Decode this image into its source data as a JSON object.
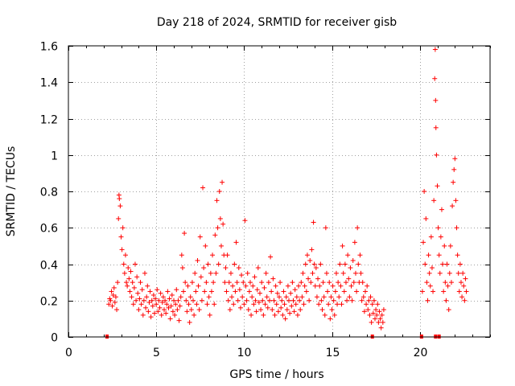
{
  "chart_data": {
    "type": "scatter",
    "title": "Day 218 of 2024, SRMTID for receiver gisb",
    "xlabel": "GPS time / hours",
    "ylabel": "SRMTID / TECUs",
    "xlim": [
      0,
      24
    ],
    "ylim": [
      0,
      1.6
    ],
    "xticks": [
      0,
      5,
      10,
      15,
      20
    ],
    "yticks": [
      0,
      0.2,
      0.4,
      0.6,
      0.8,
      1,
      1.2,
      1.4,
      1.6
    ],
    "xtick_labels": [
      "0",
      "5",
      "10",
      "15",
      "20"
    ],
    "ytick_labels": [
      "0",
      "0.2",
      "0.4",
      "0.6",
      "0.8",
      "1",
      "1.2",
      "1.4",
      "1.6"
    ],
    "grid": true,
    "marker": "plus",
    "color": "#ff0000",
    "zero_markers_x": [
      2.2,
      17.3,
      20.1,
      20.9,
      21.1
    ],
    "points": [
      [
        2.3,
        0.18
      ],
      [
        2.35,
        0.21
      ],
      [
        2.4,
        0.2
      ],
      [
        2.45,
        0.25
      ],
      [
        2.5,
        0.17
      ],
      [
        2.55,
        0.23
      ],
      [
        2.6,
        0.27
      ],
      [
        2.65,
        0.19
      ],
      [
        2.7,
        0.22
      ],
      [
        2.75,
        0.15
      ],
      [
        2.8,
        0.3
      ],
      [
        2.85,
        0.65
      ],
      [
        2.88,
        0.78
      ],
      [
        2.9,
        0.76
      ],
      [
        2.95,
        0.72
      ],
      [
        3.0,
        0.55
      ],
      [
        3.05,
        0.48
      ],
      [
        3.1,
        0.6
      ],
      [
        3.15,
        0.4
      ],
      [
        3.2,
        0.35
      ],
      [
        3.25,
        0.45
      ],
      [
        3.3,
        0.3
      ],
      [
        3.35,
        0.28
      ],
      [
        3.4,
        0.38
      ],
      [
        3.45,
        0.32
      ],
      [
        3.5,
        0.25
      ],
      [
        3.55,
        0.36
      ],
      [
        3.6,
        0.22
      ],
      [
        3.65,
        0.3
      ],
      [
        3.7,
        0.18
      ],
      [
        3.75,
        0.27
      ],
      [
        3.8,
        0.4
      ],
      [
        3.85,
        0.2
      ],
      [
        3.9,
        0.33
      ],
      [
        3.95,
        0.24
      ],
      [
        4.0,
        0.15
      ],
      [
        4.05,
        0.21
      ],
      [
        4.1,
        0.3
      ],
      [
        4.15,
        0.18
      ],
      [
        4.2,
        0.26
      ],
      [
        4.25,
        0.12
      ],
      [
        4.3,
        0.2
      ],
      [
        4.35,
        0.35
      ],
      [
        4.4,
        0.16
      ],
      [
        4.45,
        0.22
      ],
      [
        4.5,
        0.28
      ],
      [
        4.55,
        0.14
      ],
      [
        4.6,
        0.19
      ],
      [
        4.65,
        0.25
      ],
      [
        4.7,
        0.11
      ],
      [
        4.75,
        0.2
      ],
      [
        4.8,
        0.17
      ],
      [
        4.85,
        0.23
      ],
      [
        4.9,
        0.13
      ],
      [
        4.95,
        0.21
      ],
      [
        5.0,
        0.18
      ],
      [
        5.05,
        0.26
      ],
      [
        5.1,
        0.14
      ],
      [
        5.15,
        0.2
      ],
      [
        5.2,
        0.16
      ],
      [
        5.25,
        0.24
      ],
      [
        5.3,
        0.12
      ],
      [
        5.35,
        0.19
      ],
      [
        5.4,
        0.22
      ],
      [
        5.45,
        0.15
      ],
      [
        5.5,
        0.2
      ],
      [
        5.55,
        0.13
      ],
      [
        5.6,
        0.18
      ],
      [
        5.65,
        0.25
      ],
      [
        5.7,
        0.16
      ],
      [
        5.75,
        0.21
      ],
      [
        5.8,
        0.1
      ],
      [
        5.85,
        0.17
      ],
      [
        5.9,
        0.23
      ],
      [
        5.95,
        0.14
      ],
      [
        6.0,
        0.2
      ],
      [
        6.05,
        0.12
      ],
      [
        6.1,
        0.18
      ],
      [
        6.15,
        0.26
      ],
      [
        6.2,
        0.15
      ],
      [
        6.25,
        0.2
      ],
      [
        6.3,
        0.09
      ],
      [
        6.35,
        0.17
      ],
      [
        6.4,
        0.22
      ],
      [
        6.45,
        0.45
      ],
      [
        6.5,
        0.38
      ],
      [
        6.55,
        0.25
      ],
      [
        6.6,
        0.57
      ],
      [
        6.65,
        0.3
      ],
      [
        6.7,
        0.2
      ],
      [
        6.75,
        0.14
      ],
      [
        6.8,
        0.28
      ],
      [
        6.85,
        0.18
      ],
      [
        6.9,
        0.08
      ],
      [
        6.95,
        0.22
      ],
      [
        7.0,
        0.15
      ],
      [
        7.05,
        0.3
      ],
      [
        7.1,
        0.2
      ],
      [
        7.15,
        0.12
      ],
      [
        7.2,
        0.35
      ],
      [
        7.25,
        0.25
      ],
      [
        7.3,
        0.18
      ],
      [
        7.35,
        0.42
      ],
      [
        7.4,
        0.28
      ],
      [
        7.45,
        0.15
      ],
      [
        7.5,
        0.55
      ],
      [
        7.55,
        0.33
      ],
      [
        7.6,
        0.2
      ],
      [
        7.65,
        0.82
      ],
      [
        7.7,
        0.38
      ],
      [
        7.75,
        0.25
      ],
      [
        7.8,
        0.5
      ],
      [
        7.85,
        0.3
      ],
      [
        7.9,
        0.18
      ],
      [
        7.95,
        0.4
      ],
      [
        8.0,
        0.22
      ],
      [
        8.05,
        0.12
      ],
      [
        8.1,
        0.35
      ],
      [
        8.15,
        0.25
      ],
      [
        8.2,
        0.45
      ],
      [
        8.25,
        0.3
      ],
      [
        8.3,
        0.18
      ],
      [
        8.35,
        0.56
      ],
      [
        8.4,
        0.35
      ],
      [
        8.45,
        0.75
      ],
      [
        8.5,
        0.6
      ],
      [
        8.55,
        0.4
      ],
      [
        8.6,
        0.8
      ],
      [
        8.65,
        0.65
      ],
      [
        8.7,
        0.5
      ],
      [
        8.75,
        0.85
      ],
      [
        8.8,
        0.62
      ],
      [
        8.85,
        0.45
      ],
      [
        8.9,
        0.3
      ],
      [
        8.95,
        0.38
      ],
      [
        9.0,
        0.25
      ],
      [
        9.05,
        0.45
      ],
      [
        9.1,
        0.2
      ],
      [
        9.15,
        0.3
      ],
      [
        9.2,
        0.15
      ],
      [
        9.25,
        0.35
      ],
      [
        9.3,
        0.22
      ],
      [
        9.35,
        0.28
      ],
      [
        9.4,
        0.18
      ],
      [
        9.45,
        0.4
      ],
      [
        9.5,
        0.25
      ],
      [
        9.55,
        0.52
      ],
      [
        9.6,
        0.3
      ],
      [
        9.65,
        0.2
      ],
      [
        9.7,
        0.38
      ],
      [
        9.75,
        0.26
      ],
      [
        9.8,
        0.16
      ],
      [
        9.85,
        0.34
      ],
      [
        9.9,
        0.22
      ],
      [
        9.95,
        0.3
      ],
      [
        10.0,
        0.18
      ],
      [
        10.05,
        0.64
      ],
      [
        10.1,
        0.28
      ],
      [
        10.15,
        0.2
      ],
      [
        10.2,
        0.35
      ],
      [
        10.25,
        0.15
      ],
      [
        10.3,
        0.25
      ],
      [
        10.35,
        0.3
      ],
      [
        10.4,
        0.12
      ],
      [
        10.45,
        0.22
      ],
      [
        10.5,
        0.28
      ],
      [
        10.55,
        0.18
      ],
      [
        10.6,
        0.33
      ],
      [
        10.65,
        0.2
      ],
      [
        10.7,
        0.14
      ],
      [
        10.75,
        0.26
      ],
      [
        10.8,
        0.38
      ],
      [
        10.85,
        0.19
      ],
      [
        10.9,
        0.24
      ],
      [
        10.95,
        0.15
      ],
      [
        11.0,
        0.3
      ],
      [
        11.05,
        0.2
      ],
      [
        11.1,
        0.12
      ],
      [
        11.15,
        0.27
      ],
      [
        11.2,
        0.18
      ],
      [
        11.25,
        0.35
      ],
      [
        11.3,
        0.22
      ],
      [
        11.35,
        0.16
      ],
      [
        11.4,
        0.3
      ],
      [
        11.45,
        0.2
      ],
      [
        11.5,
        0.44
      ],
      [
        11.55,
        0.25
      ],
      [
        11.6,
        0.15
      ],
      [
        11.65,
        0.32
      ],
      [
        11.7,
        0.2
      ],
      [
        11.75,
        0.12
      ],
      [
        11.8,
        0.28
      ],
      [
        11.85,
        0.18
      ],
      [
        11.9,
        0.24
      ],
      [
        11.95,
        0.14
      ],
      [
        12.0,
        0.22
      ],
      [
        12.05,
        0.3
      ],
      [
        12.1,
        0.16
      ],
      [
        12.15,
        0.2
      ],
      [
        12.2,
        0.12
      ],
      [
        12.25,
        0.25
      ],
      [
        12.3,
        0.18
      ],
      [
        12.35,
        0.1
      ],
      [
        12.4,
        0.22
      ],
      [
        12.45,
        0.15
      ],
      [
        12.5,
        0.28
      ],
      [
        12.55,
        0.2
      ],
      [
        12.6,
        0.13
      ],
      [
        12.65,
        0.24
      ],
      [
        12.7,
        0.17
      ],
      [
        12.75,
        0.3
      ],
      [
        12.8,
        0.2
      ],
      [
        12.85,
        0.14
      ],
      [
        12.9,
        0.26
      ],
      [
        12.95,
        0.18
      ],
      [
        13.0,
        0.22
      ],
      [
        13.05,
        0.12
      ],
      [
        13.1,
        0.28
      ],
      [
        13.15,
        0.2
      ],
      [
        13.2,
        0.15
      ],
      [
        13.25,
        0.3
      ],
      [
        13.3,
        0.22
      ],
      [
        13.35,
        0.35
      ],
      [
        13.4,
        0.18
      ],
      [
        13.45,
        0.28
      ],
      [
        13.5,
        0.4
      ],
      [
        13.55,
        0.25
      ],
      [
        13.6,
        0.45
      ],
      [
        13.65,
        0.32
      ],
      [
        13.7,
        0.2
      ],
      [
        13.75,
        0.42
      ],
      [
        13.8,
        0.3
      ],
      [
        13.85,
        0.48
      ],
      [
        13.9,
        0.35
      ],
      [
        13.95,
        0.63
      ],
      [
        14.0,
        0.4
      ],
      [
        14.05,
        0.28
      ],
      [
        14.1,
        0.38
      ],
      [
        14.15,
        0.22
      ],
      [
        14.2,
        0.32
      ],
      [
        14.25,
        0.18
      ],
      [
        14.3,
        0.28
      ],
      [
        14.35,
        0.4
      ],
      [
        14.4,
        0.2
      ],
      [
        14.45,
        0.15
      ],
      [
        14.5,
        0.3
      ],
      [
        14.55,
        0.22
      ],
      [
        14.6,
        0.12
      ],
      [
        14.65,
        0.6
      ],
      [
        14.7,
        0.35
      ],
      [
        14.75,
        0.25
      ],
      [
        14.8,
        0.18
      ],
      [
        14.85,
        0.3
      ],
      [
        14.9,
        0.1
      ],
      [
        14.95,
        0.22
      ],
      [
        15.0,
        0.15
      ],
      [
        15.05,
        0.28
      ],
      [
        15.1,
        0.2
      ],
      [
        15.15,
        0.12
      ],
      [
        15.2,
        0.25
      ],
      [
        15.25,
        0.35
      ],
      [
        15.3,
        0.18
      ],
      [
        15.35,
        0.3
      ],
      [
        15.4,
        0.22
      ],
      [
        15.45,
        0.4
      ],
      [
        15.5,
        0.28
      ],
      [
        15.55,
        0.18
      ],
      [
        15.6,
        0.5
      ],
      [
        15.65,
        0.35
      ],
      [
        15.7,
        0.25
      ],
      [
        15.75,
        0.4
      ],
      [
        15.8,
        0.3
      ],
      [
        15.85,
        0.2
      ],
      [
        15.9,
        0.45
      ],
      [
        15.95,
        0.32
      ],
      [
        16.0,
        0.22
      ],
      [
        16.05,
        0.38
      ],
      [
        16.1,
        0.28
      ],
      [
        16.15,
        0.2
      ],
      [
        16.2,
        0.42
      ],
      [
        16.25,
        0.3
      ],
      [
        16.3,
        0.52
      ],
      [
        16.35,
        0.35
      ],
      [
        16.4,
        0.25
      ],
      [
        16.45,
        0.6
      ],
      [
        16.5,
        0.4
      ],
      [
        16.55,
        0.3
      ],
      [
        16.6,
        0.45
      ],
      [
        16.65,
        0.35
      ],
      [
        16.7,
        0.2
      ],
      [
        16.75,
        0.3
      ],
      [
        16.8,
        0.22
      ],
      [
        16.85,
        0.14
      ],
      [
        16.9,
        0.25
      ],
      [
        16.95,
        0.18
      ],
      [
        17.0,
        0.28
      ],
      [
        17.05,
        0.15
      ],
      [
        17.1,
        0.2
      ],
      [
        17.15,
        0.12
      ],
      [
        17.2,
        0.22
      ],
      [
        17.25,
        0.08
      ],
      [
        17.3,
        0.18
      ],
      [
        17.35,
        0.13
      ],
      [
        17.4,
        0.2
      ],
      [
        17.45,
        0.1
      ],
      [
        17.5,
        0.15
      ],
      [
        17.55,
        0.12
      ],
      [
        17.6,
        0.18
      ],
      [
        17.65,
        0.08
      ],
      [
        17.7,
        0.14
      ],
      [
        17.75,
        0.1
      ],
      [
        17.8,
        0.05
      ],
      [
        17.85,
        0.12
      ],
      [
        17.9,
        0.08
      ],
      [
        17.95,
        0.15
      ],
      [
        20.15,
        0.25
      ],
      [
        20.2,
        0.52
      ],
      [
        20.25,
        0.8
      ],
      [
        20.3,
        0.4
      ],
      [
        20.35,
        0.65
      ],
      [
        20.4,
        0.3
      ],
      [
        20.45,
        0.2
      ],
      [
        20.5,
        0.45
      ],
      [
        20.55,
        0.35
      ],
      [
        20.6,
        0.28
      ],
      [
        20.65,
        0.55
      ],
      [
        20.7,
        0.38
      ],
      [
        20.75,
        0.25
      ],
      [
        20.8,
        0.75
      ],
      [
        20.85,
        1.42
      ],
      [
        20.88,
        1.58
      ],
      [
        20.9,
        1.3
      ],
      [
        20.92,
        1.15
      ],
      [
        20.95,
        1.0
      ],
      [
        21.0,
        0.83
      ],
      [
        21.05,
        0.6
      ],
      [
        21.1,
        0.45
      ],
      [
        21.15,
        0.35
      ],
      [
        21.2,
        0.55
      ],
      [
        21.25,
        0.7
      ],
      [
        21.3,
        0.4
      ],
      [
        21.35,
        0.25
      ],
      [
        21.4,
        0.5
      ],
      [
        21.45,
        0.3
      ],
      [
        21.5,
        0.2
      ],
      [
        21.55,
        0.4
      ],
      [
        21.6,
        0.28
      ],
      [
        21.65,
        0.15
      ],
      [
        21.7,
        0.35
      ],
      [
        21.75,
        0.5
      ],
      [
        21.8,
        0.3
      ],
      [
        21.85,
        0.72
      ],
      [
        21.9,
        0.85
      ],
      [
        21.95,
        0.92
      ],
      [
        22.0,
        0.98
      ],
      [
        22.05,
        0.75
      ],
      [
        22.1,
        0.6
      ],
      [
        22.15,
        0.45
      ],
      [
        22.2,
        0.35
      ],
      [
        22.25,
        0.25
      ],
      [
        22.3,
        0.4
      ],
      [
        22.35,
        0.3
      ],
      [
        22.4,
        0.22
      ],
      [
        22.45,
        0.35
      ],
      [
        22.5,
        0.28
      ],
      [
        22.55,
        0.2
      ],
      [
        22.6,
        0.32
      ],
      [
        22.65,
        0.25
      ]
    ]
  }
}
